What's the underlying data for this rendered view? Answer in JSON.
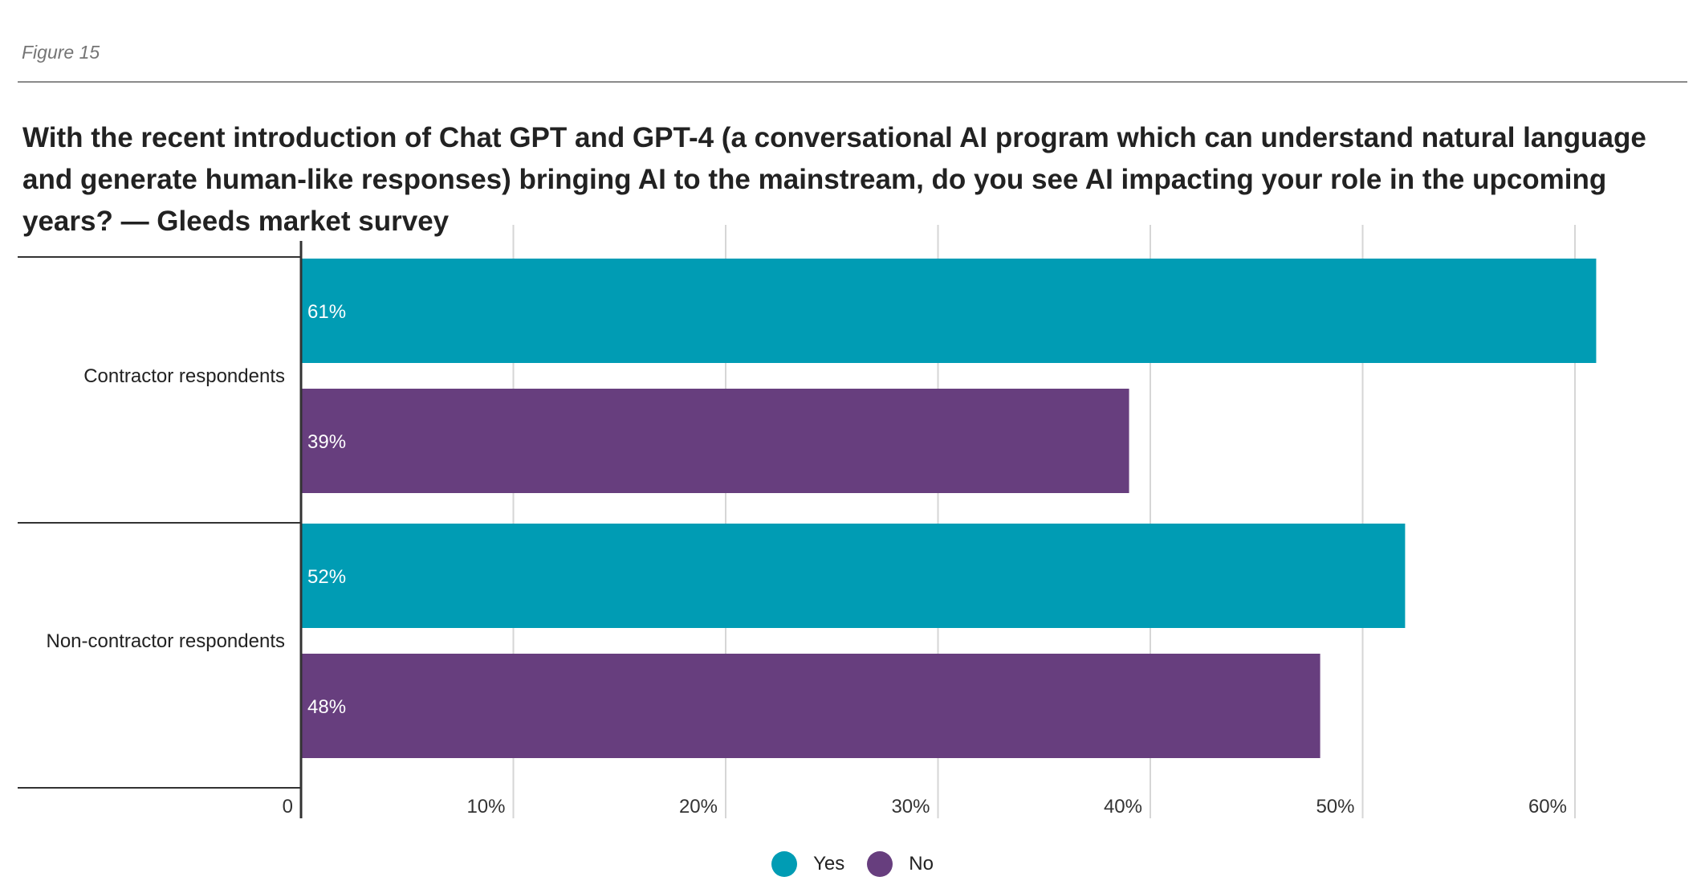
{
  "figure_label": "Figure 15",
  "chart_data": {
    "type": "bar",
    "orientation": "horizontal",
    "title": "With the recent introduction of Chat GPT and GPT-4 (a conversational AI program which can understand natural language and generate human-like responses) bringing AI to the mainstream, do you see AI impacting your role in the upcoming years? — Gleeds market survey",
    "categories": [
      "Contractor respondents",
      "Non-contractor respondents"
    ],
    "series": [
      {
        "name": "Yes",
        "color": "#009cb4",
        "values": [
          61,
          52
        ],
        "labels": [
          "61%",
          "52%"
        ]
      },
      {
        "name": "No",
        "color": "#673e7e",
        "values": [
          39,
          48
        ],
        "labels": [
          "39%",
          "48%"
        ]
      }
    ],
    "xlim": [
      0,
      64
    ],
    "xticks": [
      0,
      10,
      20,
      30,
      40,
      50,
      60
    ],
    "xtick_labels": [
      "0",
      "10%",
      "20%",
      "30%",
      "40%",
      "50%",
      "60%"
    ],
    "grid": true,
    "legend_position": "bottom-center",
    "xlabel": "",
    "ylabel": ""
  }
}
